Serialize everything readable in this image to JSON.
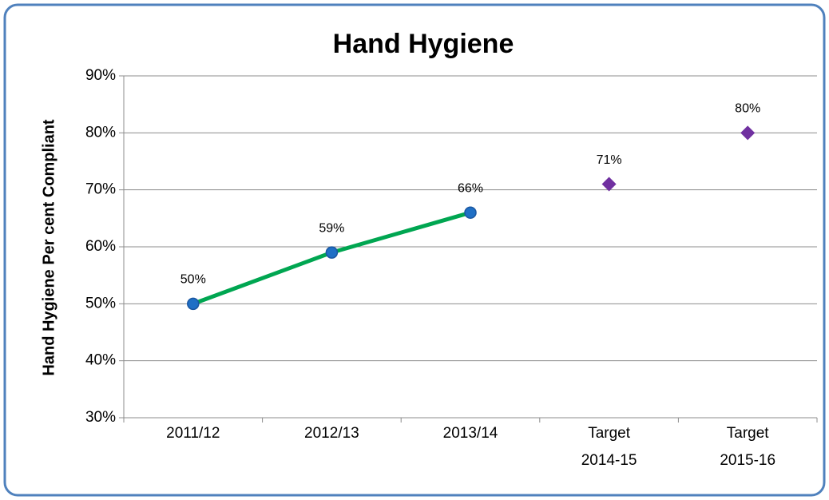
{
  "chart_data": {
    "type": "line",
    "title": "Hand Hygiene",
    "y_label": "Hand Hygiene Per cent Compliant",
    "categories": [
      "2011/12",
      "2012/13",
      "2013/14",
      "Target\n2014-15",
      "Target\n2015-16"
    ],
    "series": [
      {
        "color": "#00a651",
        "marker": "circle",
        "marker_color": "#1f6fc5",
        "values": [
          50,
          59,
          66,
          null,
          null
        ],
        "value_labels": [
          "50%",
          "59%",
          "66%",
          null,
          null
        ]
      },
      {
        "color": "#7030a0",
        "marker": "diamond",
        "marker_color": "#7030a0",
        "line": false,
        "values": [
          null,
          null,
          null,
          71,
          80
        ],
        "value_labels": [
          null,
          null,
          null,
          "71%",
          "80%"
        ]
      }
    ],
    "ylim": [
      30,
      90
    ],
    "yticks": [
      {
        "value": 30,
        "label": "30%"
      },
      {
        "value": 40,
        "label": "40%"
      },
      {
        "value": 50,
        "label": "50%"
      },
      {
        "value": 60,
        "label": "60%"
      },
      {
        "value": 70,
        "label": "70%"
      },
      {
        "value": 80,
        "label": "80%"
      },
      {
        "value": 90,
        "label": "90%"
      }
    ],
    "grid": true
  }
}
